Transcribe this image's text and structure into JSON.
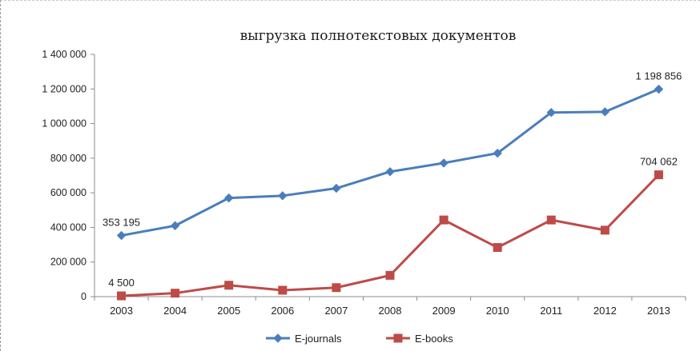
{
  "chart_data": {
    "type": "line",
    "title": "выгрузка полнотекстовых документов",
    "categories": [
      "2003",
      "2004",
      "2005",
      "2006",
      "2007",
      "2008",
      "2009",
      "2010",
      "2011",
      "2012",
      "2013"
    ],
    "series": [
      {
        "name": "E-journals",
        "color": "#4a7ebb",
        "marker": "diamond",
        "values": [
          353195,
          410000,
          570000,
          583000,
          626000,
          722000,
          772000,
          829000,
          1064000,
          1068000,
          1198856
        ]
      },
      {
        "name": "E-books",
        "color": "#be4b48",
        "marker": "square",
        "values": [
          4500,
          20000,
          66000,
          37000,
          52000,
          123000,
          443000,
          284000,
          443000,
          384000,
          704062
        ]
      }
    ],
    "data_labels": [
      {
        "series": 0,
        "index": 0,
        "text": "353 195"
      },
      {
        "series": 0,
        "index": 10,
        "text": "1 198 856"
      },
      {
        "series": 1,
        "index": 0,
        "text": "4 500"
      },
      {
        "series": 1,
        "index": 10,
        "text": "704 062"
      }
    ],
    "yticks": [
      "0",
      "200 000",
      "400 000",
      "600 000",
      "800 000",
      "1 000 000",
      "1 200 000",
      "1 400 000"
    ],
    "ylim": [
      0,
      1400000
    ],
    "legend": "bottom",
    "grid": false
  }
}
